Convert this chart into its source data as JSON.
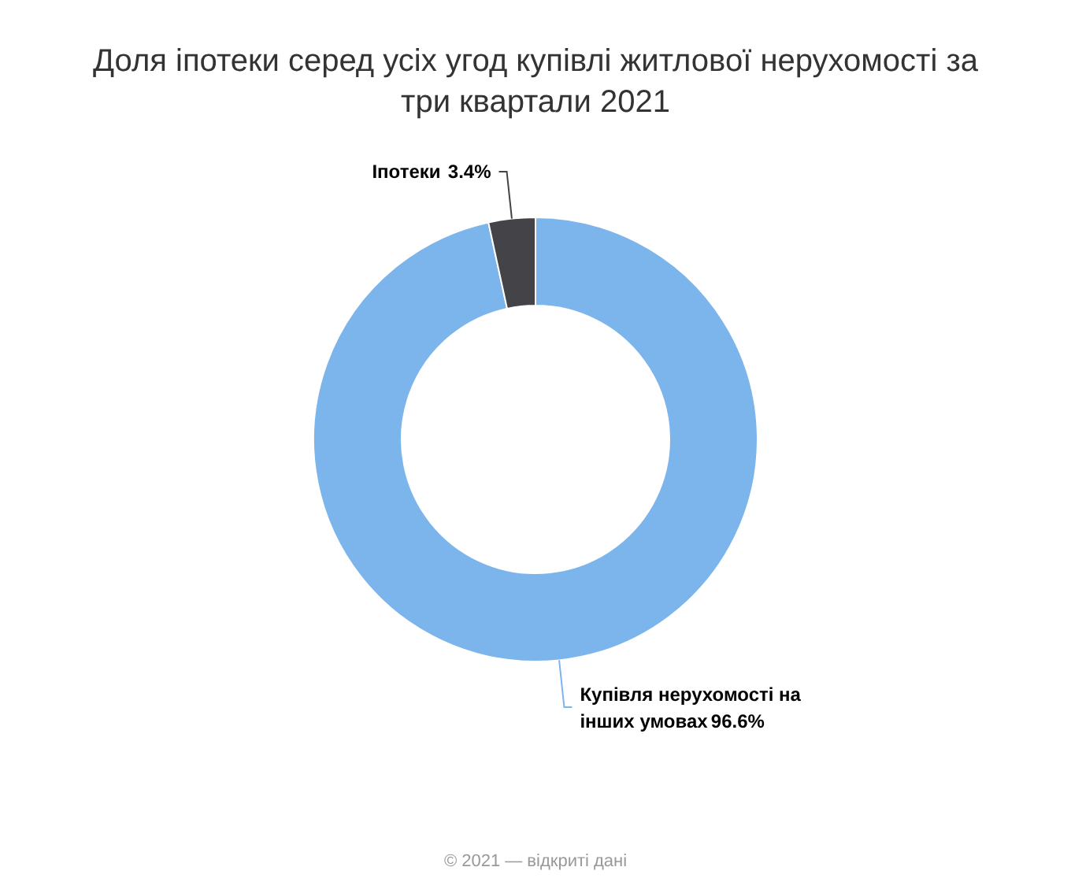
{
  "chart_data": {
    "type": "donut",
    "title": "Доля іпотеки серед усіх угод купівлі житлової нерухомості за три квартали 2021",
    "categories": [
      "Купівля нерухомості на інших умовах",
      "Іпотеки"
    ],
    "values": [
      96.6,
      3.4
    ],
    "colors": [
      "#7cb5ec",
      "#434348"
    ],
    "value_labels": [
      "96.6%",
      "3.4%"
    ],
    "annotations": [
      "© 2021 — відкриті дані"
    ]
  }
}
